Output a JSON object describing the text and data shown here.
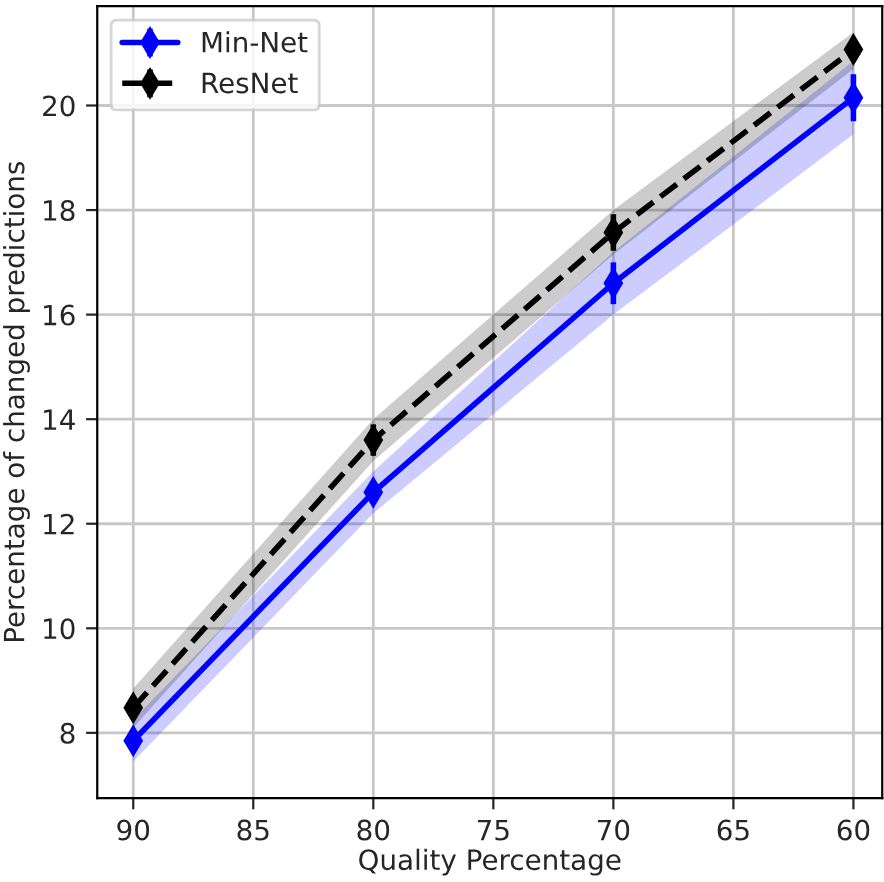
{
  "chart_data": {
    "type": "line",
    "xlabel": "Quality Percentage",
    "ylabel": "Percentage of changed predictions",
    "x": [
      90,
      80,
      70,
      60
    ],
    "xlim": [
      91.5,
      58.8
    ],
    "xticks": [
      90,
      85,
      80,
      75,
      70,
      65,
      60
    ],
    "ylim": [
      6.75,
      21.9
    ],
    "yticks": [
      8,
      10,
      12,
      14,
      16,
      18,
      20
    ],
    "grid": true,
    "legend": "top left",
    "marker": "diamond",
    "series": [
      {
        "name": "Min-Net",
        "color": "#0000ff",
        "values": [
          7.85,
          12.6,
          16.6,
          20.15
        ],
        "errors": [
          0.2,
          0.2,
          0.4,
          0.45
        ],
        "lower": [
          7.45,
          12.2,
          16.0,
          19.45
        ],
        "upper": [
          8.25,
          13.0,
          17.2,
          20.85
        ],
        "line_style": "solid"
      },
      {
        "name": "ResNet",
        "color": "#000000",
        "values": [
          8.48,
          13.6,
          17.57,
          21.07
        ],
        "errors": [
          0.15,
          0.3,
          0.35,
          0.1
        ],
        "lower": [
          8.1,
          13.2,
          17.15,
          20.7
        ],
        "upper": [
          8.85,
          14.0,
          18.0,
          21.4
        ],
        "line_style": "dashed"
      }
    ]
  }
}
